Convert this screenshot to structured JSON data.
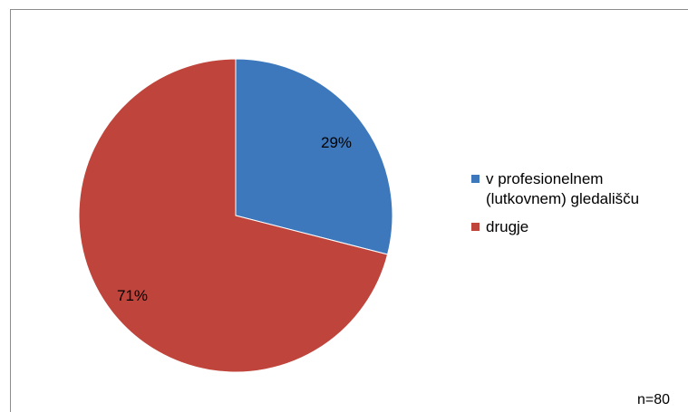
{
  "chart_data": {
    "type": "pie",
    "categories": [
      "v profesionelnem (lutkovnem) gledališču",
      "drugje"
    ],
    "values": [
      29,
      71
    ],
    "labels": [
      "29%",
      "71%"
    ],
    "colors": [
      "#3d78bd",
      "#bf453c"
    ],
    "legend_position": "right",
    "legend": [
      {
        "lines": [
          "v profesionelnem",
          "(lutkovnem) gledališču"
        ],
        "color": "#3d78bd"
      },
      {
        "lines": [
          "drugje"
        ],
        "color": "#bf453c"
      }
    ],
    "note": "n=80"
  }
}
